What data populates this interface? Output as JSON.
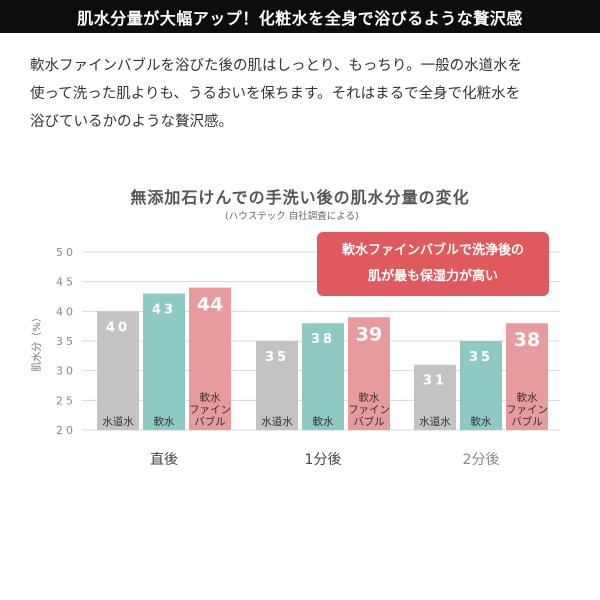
{
  "banner": {
    "title": "肌水分量が大幅アップ！化粧水を全身で浴びるような贅沢感"
  },
  "intro": {
    "lines": [
      "軟水ファインバブルを浴びた後の肌はしっとり、もっちり。一般の水道水を",
      "使って洗った肌よりも、うるおいを保ちます。それはまるで全身で化粧水を",
      "浴びているかのような贅沢感。"
    ]
  },
  "callout": {
    "lines": [
      "軟水ファインバブルで洗浄後の",
      "肌が最も保湿力が高い"
    ]
  },
  "colors": {
    "tap": "#c3c3c3",
    "soft": "#8fc9c4",
    "fine": "#e79b9c",
    "callout": "#e05a5d",
    "grid": "#d9d9d9"
  },
  "chart_data": {
    "type": "bar",
    "title": "無添加石けんでの手洗い後の肌水分量の変化",
    "subtitle": "(ハウステック 自社調査による)",
    "ylabel": "肌水分（%）",
    "ylim": [
      20,
      50
    ],
    "yticks": [
      "50",
      "45",
      "40",
      "35",
      "30",
      "25",
      "20"
    ],
    "grid": true,
    "categories": [
      "直後",
      "1分後",
      "2分後"
    ],
    "series": [
      {
        "name": "水道水",
        "color": "#c3c3c3",
        "values": [
          40,
          35,
          31
        ],
        "labels": [
          "40",
          "35",
          "31"
        ]
      },
      {
        "name": "軟水",
        "color": "#8fc9c4",
        "values": [
          43,
          38,
          35
        ],
        "labels": [
          "43",
          "38",
          "35"
        ]
      },
      {
        "name": "軟水ファインバブル",
        "color": "#e79b9c",
        "values": [
          44,
          39,
          38
        ],
        "labels": [
          "44",
          "39",
          "38"
        ]
      }
    ],
    "bar_names": [
      [
        "水道水"
      ],
      [
        "軟水"
      ],
      [
        "軟水",
        "ファイン",
        "バブル"
      ]
    ]
  }
}
